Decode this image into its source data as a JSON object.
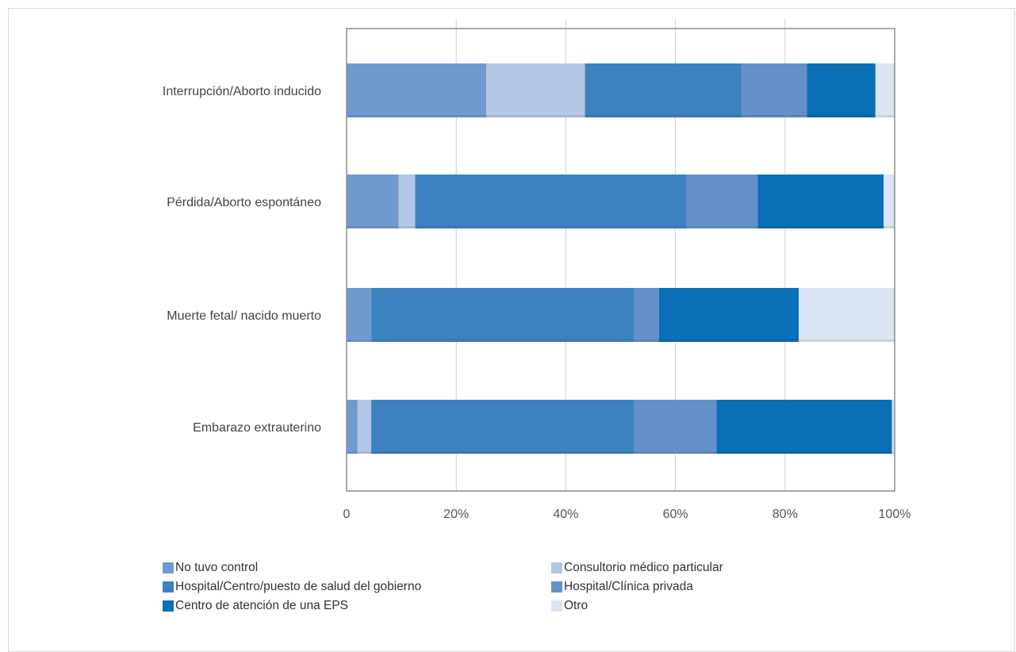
{
  "chart_data": {
    "type": "bar",
    "orientation": "horizontal",
    "stacked": "percent",
    "title": "",
    "xlabel": "",
    "ylabel": "",
    "xlim": [
      0,
      100
    ],
    "x_ticks": [
      "0",
      "20%",
      "40%",
      "60%",
      "80%",
      "100%"
    ],
    "grid": true,
    "legend_position": "bottom",
    "categories": [
      "Interrupción/Aborto inducido",
      "Pérdida/Aborto espontáneo",
      "Muerte fetal/ nacido muerto",
      "Embarazo extrauterino"
    ],
    "series": [
      {
        "name": "No tuvo control",
        "color": "#6f9ad0",
        "values": [
          25.5,
          9.5,
          4.5,
          2.0
        ]
      },
      {
        "name": "Consultorio médico particular",
        "color": "#b3c6e6",
        "values": [
          18.0,
          3.0,
          0.0,
          2.5
        ]
      },
      {
        "name": "Hospital/Centro/puesto de salud del gobierno",
        "color": "#3d82c0",
        "values": [
          28.5,
          49.5,
          48.0,
          48.0
        ]
      },
      {
        "name": "Hospital/Clínica privada",
        "color": "#6490c9",
        "values": [
          12.0,
          13.0,
          4.5,
          15.0
        ]
      },
      {
        "name": "Centro de atención de una EPS",
        "color": "#0a6fb6",
        "values": [
          12.5,
          23.0,
          25.5,
          32.0
        ]
      },
      {
        "name": "Otro",
        "color": "#dae4f3",
        "values": [
          3.5,
          2.0,
          17.5,
          0.5
        ]
      }
    ]
  }
}
